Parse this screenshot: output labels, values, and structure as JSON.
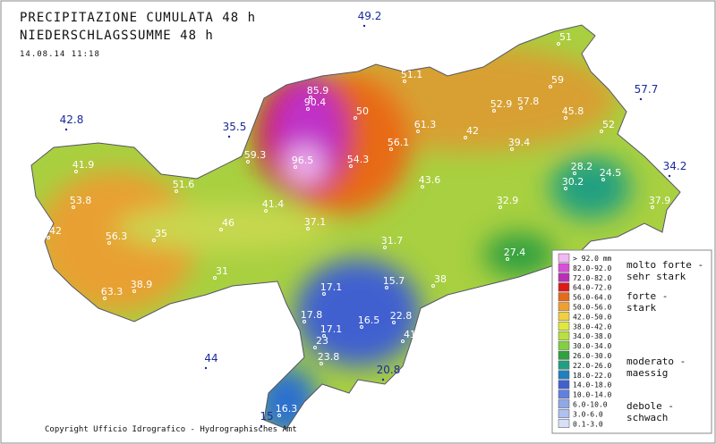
{
  "header": {
    "title_it": "PRECIPITAZIONE CUMULATA 48 h",
    "title_de": "NIEDERSCHLAGSSUMME 48 h",
    "timestamp": "14.08.14  11:18"
  },
  "stations_outside": [
    "49.2",
    "57.7",
    "42.8",
    "35.5",
    "34.2",
    "44",
    "20.8",
    "15"
  ],
  "stations_inside": [
    "51",
    "51.1",
    "59",
    "85.9",
    "90.4",
    "52.9",
    "57.8",
    "45.8",
    "50",
    "52",
    "61.3",
    "42",
    "56.1",
    "39.4",
    "59.3",
    "96.5",
    "54.3",
    "41.9",
    "28.2",
    "24.5",
    "51.6",
    "43.6",
    "30.2",
    "53.8",
    "41.4",
    "32.9",
    "37.9",
    "46",
    "37.1",
    "42",
    "56.3",
    "35",
    "31.7",
    "27.4",
    "31",
    "38.9",
    "38",
    "17.1",
    "15.7",
    "63.3",
    "17.8",
    "16.5",
    "22.8",
    "17.1",
    "41",
    "23",
    "23.8",
    "16.3"
  ],
  "legend": {
    "classes": [
      {
        "label": "> 92.0 mm",
        "color": "#f2b8f2"
      },
      {
        "label": "82.0-92.0",
        "color": "#d84ed8"
      },
      {
        "label": "72.0-82.0",
        "color": "#b82fb8"
      },
      {
        "label": "64.0-72.0",
        "color": "#e01818"
      },
      {
        "label": "56.0-64.0",
        "color": "#e86a18"
      },
      {
        "label": "50.0-56.0",
        "color": "#f0a030"
      },
      {
        "label": "42.0-50.0",
        "color": "#f0d040"
      },
      {
        "label": "38.0-42.0",
        "color": "#e0e840"
      },
      {
        "label": "34.0-38.0",
        "color": "#b8e040"
      },
      {
        "label": "30.0-34.0",
        "color": "#80d040"
      },
      {
        "label": "26.0-30.0",
        "color": "#30a040"
      },
      {
        "label": "22.0-26.0",
        "color": "#20a080"
      },
      {
        "label": "18.0-22.0",
        "color": "#2080c0"
      },
      {
        "label": "14.0-18.0",
        "color": "#4060d0"
      },
      {
        "label": "10.0-14.0",
        "color": "#6080e0"
      },
      {
        "label": "6.0-10.0",
        "color": "#90a8e8"
      },
      {
        "label": "3.0-6.0",
        "color": "#b0c0f0"
      },
      {
        "label": "0.1-3.0",
        "color": "#d8e0f8"
      }
    ],
    "groups": [
      [
        "molto forte -",
        "sehr stark"
      ],
      [
        "forte -",
        "stark"
      ],
      [
        "moderato -",
        "maessig"
      ],
      [
        "debole -",
        "schwach"
      ]
    ]
  },
  "copyright": "Copyright Ufficio Idrografico - Hydrographisches Amt"
}
